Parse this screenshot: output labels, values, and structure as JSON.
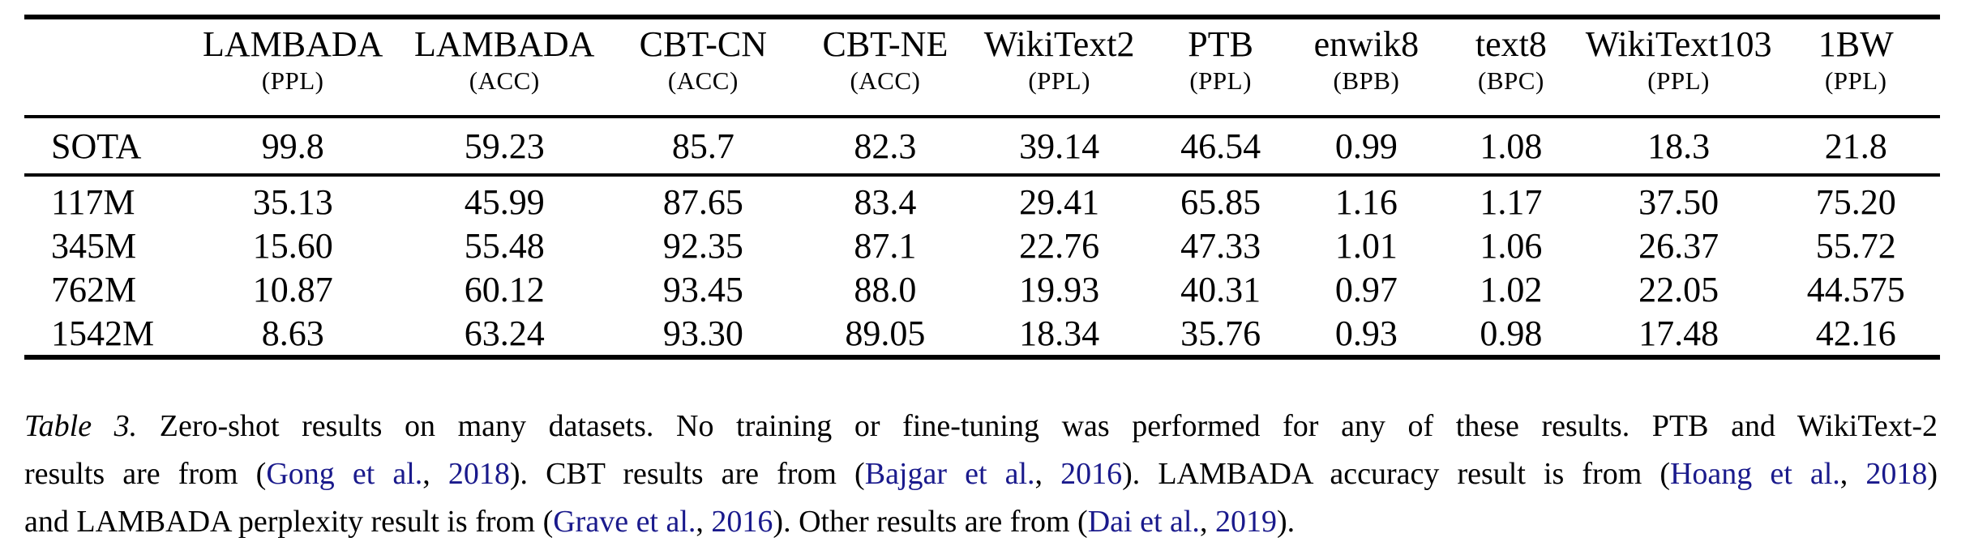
{
  "page": {
    "background": "#ffffff",
    "text_color": "#000000",
    "link_color": "#1a1a8c"
  },
  "table": {
    "columns": [
      {
        "name": "LAMBADA",
        "unit": "(PPL)"
      },
      {
        "name": "LAMBADA",
        "unit": "(ACC)"
      },
      {
        "name": "CBT-CN",
        "unit": "(ACC)"
      },
      {
        "name": "CBT-NE",
        "unit": "(ACC)"
      },
      {
        "name": "WikiText2",
        "unit": "(PPL)"
      },
      {
        "name": "PTB",
        "unit": "(PPL)"
      },
      {
        "name": "enwik8",
        "unit": "(BPB)"
      },
      {
        "name": "text8",
        "unit": "(BPC)"
      },
      {
        "name": "WikiText103",
        "unit": "(PPL)"
      },
      {
        "name": "1BW",
        "unit": "(PPL)"
      }
    ],
    "rows": [
      {
        "label": "SOTA",
        "group": "sota",
        "values": [
          "99.8",
          "59.23",
          "85.7",
          "82.3",
          "39.14",
          "46.54",
          "0.99",
          "1.08",
          "18.3",
          "21.8"
        ],
        "bold": [
          false,
          false,
          false,
          false,
          false,
          false,
          false,
          false,
          false,
          true
        ]
      },
      {
        "label": "117M",
        "group": "models",
        "values": [
          "35.13",
          "45.99",
          "87.65",
          "83.4",
          "29.41",
          "65.85",
          "1.16",
          "1.17",
          "37.50",
          "75.20"
        ],
        "bold": [
          true,
          false,
          true,
          true,
          true,
          false,
          false,
          false,
          false,
          false
        ]
      },
      {
        "label": "345M",
        "group": "models",
        "values": [
          "15.60",
          "55.48",
          "92.35",
          "87.1",
          "22.76",
          "47.33",
          "1.01",
          "1.06",
          "26.37",
          "55.72"
        ],
        "bold": [
          true,
          false,
          true,
          true,
          true,
          false,
          false,
          true,
          false,
          false
        ]
      },
      {
        "label": "762M",
        "group": "models",
        "values": [
          "10.87",
          "60.12",
          "93.45",
          "88.0",
          "19.93",
          "40.31",
          "0.97",
          "1.02",
          "22.05",
          "44.575"
        ],
        "bold": [
          true,
          true,
          true,
          true,
          true,
          true,
          true,
          true,
          false,
          false
        ]
      },
      {
        "label": "1542M",
        "group": "models",
        "values": [
          "8.63",
          "63.24",
          "93.30",
          "89.05",
          "18.34",
          "35.76",
          "0.93",
          "0.98",
          "17.48",
          "42.16"
        ],
        "bold": [
          true,
          true,
          true,
          true,
          true,
          true,
          true,
          true,
          true,
          false
        ]
      }
    ]
  },
  "caption": {
    "lines": [
      {
        "justify": true,
        "segments": [
          {
            "style": "italic",
            "text": "Table 3."
          },
          {
            "style": "plain",
            "text": " Zero-shot results on many datasets. No training or fine-tuning was performed for any of these results. PTB and WikiText-2"
          }
        ]
      },
      {
        "justify": true,
        "segments": [
          {
            "style": "plain",
            "text": "results are from ("
          },
          {
            "style": "link",
            "text": "Gong et al."
          },
          {
            "style": "plain",
            "text": ", "
          },
          {
            "style": "link",
            "text": "2018"
          },
          {
            "style": "plain",
            "text": "). CBT results are from ("
          },
          {
            "style": "link",
            "text": "Bajgar et al."
          },
          {
            "style": "plain",
            "text": ", "
          },
          {
            "style": "link",
            "text": "2016"
          },
          {
            "style": "plain",
            "text": "). LAMBADA accuracy result is from ("
          },
          {
            "style": "link",
            "text": "Hoang et al."
          },
          {
            "style": "plain",
            "text": ", "
          },
          {
            "style": "link",
            "text": "2018"
          },
          {
            "style": "plain",
            "text": ")"
          }
        ]
      },
      {
        "justify": false,
        "segments": [
          {
            "style": "plain",
            "text": "and LAMBADA perplexity result is from ("
          },
          {
            "style": "link",
            "text": "Grave et al."
          },
          {
            "style": "plain",
            "text": ", "
          },
          {
            "style": "link",
            "text": "2016"
          },
          {
            "style": "plain",
            "text": "). Other results are from ("
          },
          {
            "style": "link",
            "text": "Dai et al."
          },
          {
            "style": "plain",
            "text": ", "
          },
          {
            "style": "link",
            "text": "2019"
          },
          {
            "style": "plain",
            "text": ")."
          }
        ]
      }
    ]
  }
}
